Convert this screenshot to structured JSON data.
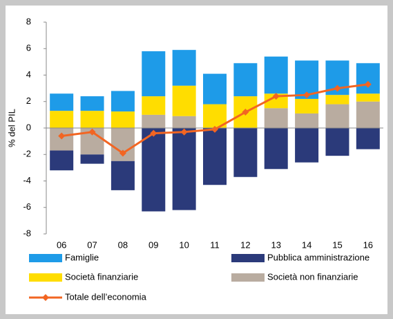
{
  "chart_data": {
    "type": "bar",
    "stacked": true,
    "y_label": "% del PIL",
    "categories": [
      "06",
      "07",
      "08",
      "09",
      "10",
      "11",
      "12",
      "13",
      "14",
      "15",
      "16"
    ],
    "series": [
      {
        "name": "Famiglie",
        "color": "#1e9be8",
        "values": [
          1.3,
          1.1,
          1.55,
          3.4,
          2.7,
          2.3,
          2.5,
          2.8,
          2.9,
          2.6,
          2.3
        ]
      },
      {
        "name": "Pubblica amministrazione",
        "color": "#2b3a7a",
        "values": [
          -1.5,
          -0.7,
          -2.2,
          -6.3,
          -6.2,
          -4.3,
          -3.7,
          -3.1,
          -2.6,
          -2.1,
          -1.6
        ]
      },
      {
        "name": "Società finanziarie",
        "color": "#ffdd00",
        "values": [
          1.3,
          1.3,
          1.25,
          1.4,
          2.3,
          1.8,
          2.4,
          1.1,
          1.1,
          0.7,
          0.6
        ]
      },
      {
        "name": "Società non finanziarie",
        "color": "#b9aca0",
        "values": [
          -1.7,
          -2.0,
          -2.5,
          1.0,
          0.9,
          0,
          0,
          1.5,
          1.1,
          1.8,
          2.0
        ]
      },
      {
        "name": "Totale dell’economia",
        "color": "#f26522",
        "type": "line",
        "values": [
          -0.6,
          -0.3,
          -1.9,
          -0.4,
          -0.3,
          -0.1,
          1.2,
          2.4,
          2.5,
          3.0,
          3.3
        ]
      }
    ],
    "ylim": [
      -8,
      8
    ],
    "yticks": [
      -8,
      -6,
      -4,
      -2,
      0,
      2,
      4,
      6,
      8
    ]
  }
}
